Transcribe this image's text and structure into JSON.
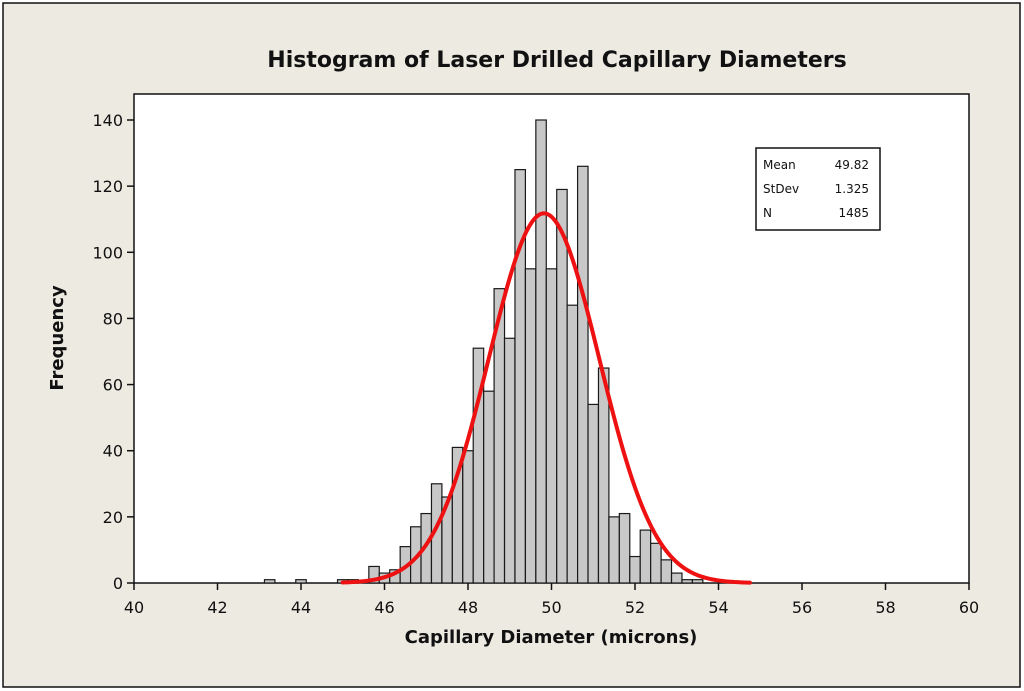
{
  "chart_data": {
    "type": "bar",
    "title": "Histogram of Laser Drilled Capillary Diameters",
    "xlabel": "Capillary Diameter (microns)",
    "ylabel": "Frequency",
    "xlim": [
      40,
      60
    ],
    "ylim": [
      0,
      150
    ],
    "xticks": [
      40,
      42,
      44,
      46,
      48,
      50,
      52,
      54,
      56,
      58,
      60
    ],
    "yticks": [
      0,
      20,
      40,
      60,
      80,
      100,
      120,
      140
    ],
    "bin_width": 0.25,
    "bins": [
      {
        "x": 43.25,
        "y": 1
      },
      {
        "x": 44.0,
        "y": 1
      },
      {
        "x": 45.0,
        "y": 1
      },
      {
        "x": 45.25,
        "y": 1
      },
      {
        "x": 45.75,
        "y": 5
      },
      {
        "x": 46.0,
        "y": 3
      },
      {
        "x": 46.25,
        "y": 4
      },
      {
        "x": 46.5,
        "y": 11
      },
      {
        "x": 46.75,
        "y": 17
      },
      {
        "x": 47.0,
        "y": 21
      },
      {
        "x": 47.25,
        "y": 30
      },
      {
        "x": 47.5,
        "y": 26
      },
      {
        "x": 47.75,
        "y": 41
      },
      {
        "x": 48.0,
        "y": 40
      },
      {
        "x": 48.25,
        "y": 71
      },
      {
        "x": 48.5,
        "y": 58
      },
      {
        "x": 48.75,
        "y": 89
      },
      {
        "x": 49.0,
        "y": 74
      },
      {
        "x": 49.25,
        "y": 125
      },
      {
        "x": 49.5,
        "y": 95
      },
      {
        "x": 49.75,
        "y": 140
      },
      {
        "x": 50.0,
        "y": 95
      },
      {
        "x": 50.25,
        "y": 119
      },
      {
        "x": 50.5,
        "y": 84
      },
      {
        "x": 50.75,
        "y": 126
      },
      {
        "x": 51.0,
        "y": 54
      },
      {
        "x": 51.25,
        "y": 65
      },
      {
        "x": 51.5,
        "y": 20
      },
      {
        "x": 51.75,
        "y": 21
      },
      {
        "x": 52.0,
        "y": 8
      },
      {
        "x": 52.25,
        "y": 16
      },
      {
        "x": 52.5,
        "y": 12
      },
      {
        "x": 52.75,
        "y": 7
      },
      {
        "x": 53.0,
        "y": 3
      },
      {
        "x": 53.25,
        "y": 1
      },
      {
        "x": 53.5,
        "y": 1
      }
    ],
    "fit_curve": {
      "type": "normal",
      "mean": 49.82,
      "stdev": 1.325,
      "n": 1485,
      "color": "#ee1111"
    },
    "legend": {
      "placement": "top-right",
      "rows": [
        {
          "label": "Mean",
          "value": "49.82"
        },
        {
          "label": "StDev",
          "value": "1.325"
        },
        {
          "label": "N",
          "value": "1485"
        }
      ]
    },
    "colors": {
      "bar_fill": "#c8c8c8",
      "bar_stroke": "#1a1a1a",
      "background": "#edeae2",
      "plot_bg": "#ffffff"
    }
  }
}
